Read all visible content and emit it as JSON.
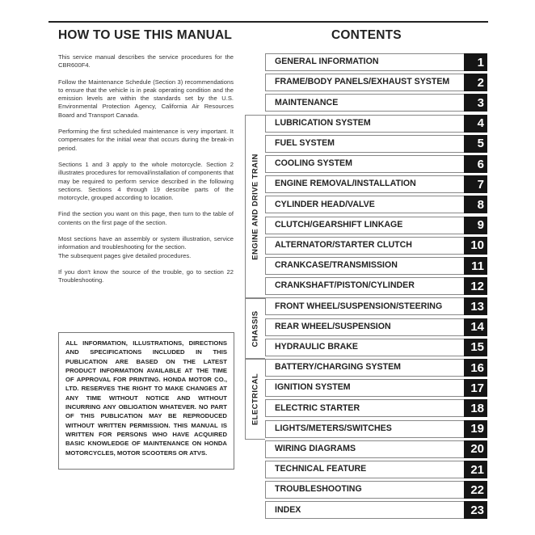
{
  "left": {
    "title": "HOW TO USE THIS MANUAL",
    "paragraphs": [
      "This service manual describes the service procedures for the CBR600F4.",
      "Follow the Maintenance Schedule (Section 3) recommendations to ensure that the vehicle is in peak operating condition and the emission levels are within the standards set by the U.S. Environmental Protection Agency, California Air Resources Board and Transport Canada.",
      "Performing the first scheduled maintenance is very important. It compensates for the initial wear that occurs during the break-in period.",
      "Sections 1 and 3 apply to the whole motorcycle. Section 2 illustrates procedures for removal/installation of components that may be required to perform service described in the following sections. Sections 4 through 19 describe parts of the motorcycle, grouped according to location.",
      "Find the section you want on this page, then turn to the table of contents on the first page of the section.",
      "Most sections have an assembly or system illustration, service information and troubleshooting for the section.",
      "The subsequent pages give detailed procedures.",
      "If you don't know the source of the trouble, go to section 22 Troubleshooting."
    ],
    "disclaimer": "ALL INFORMATION, ILLUSTRATIONS, DIRECTIONS AND SPECIFICATIONS INCLUDED IN THIS PUBLICATION ARE BASED ON THE LATEST PRODUCT INFORMATION AVAILABLE AT THE TIME OF APPROVAL FOR PRINTING. HONDA MOTOR CO., LTD. RESERVES THE RIGHT TO MAKE CHANGES AT ANY TIME WITHOUT NOTICE AND WITHOUT INCURRING ANY OBLIGATION WHATEVER. NO PART OF THIS PUBLICATION MAY BE REPRODUCED WITHOUT WRITTEN PERMISSION. THIS MANUAL IS WRITTEN FOR PERSONS WHO HAVE ACQUIRED BASIC KNOWLEDGE OF MAINTENANCE ON HONDA MOTORCYCLES, MOTOR SCOOTERS OR ATVS."
  },
  "contents": {
    "title": "CONTENTS",
    "groups": [
      "ENGINE AND DRIVE TRAIN",
      "CHASSIS",
      "ELECTRICAL"
    ],
    "items": [
      {
        "label": "GENERAL INFORMATION",
        "num": "1"
      },
      {
        "label": "FRAME/BODY PANELS/EXHAUST SYSTEM",
        "num": "2"
      },
      {
        "label": "MAINTENANCE",
        "num": "3"
      },
      {
        "label": "LUBRICATION SYSTEM",
        "num": "4"
      },
      {
        "label": "FUEL SYSTEM",
        "num": "5"
      },
      {
        "label": "COOLING SYSTEM",
        "num": "6"
      },
      {
        "label": "ENGINE REMOVAL/INSTALLATION",
        "num": "7"
      },
      {
        "label": "CYLINDER HEAD/VALVE",
        "num": "8"
      },
      {
        "label": "CLUTCH/GEARSHIFT LINKAGE",
        "num": "9"
      },
      {
        "label": "ALTERNATOR/STARTER CLUTCH",
        "num": "10"
      },
      {
        "label": "CRANKCASE/TRANSMISSION",
        "num": "11"
      },
      {
        "label": "CRANKSHAFT/PISTON/CYLINDER",
        "num": "12"
      },
      {
        "label": "FRONT WHEEL/SUSPENSION/STEERING",
        "num": "13"
      },
      {
        "label": "REAR WHEEL/SUSPENSION",
        "num": "14"
      },
      {
        "label": "HYDRAULIC BRAKE",
        "num": "15"
      },
      {
        "label": "BATTERY/CHARGING SYSTEM",
        "num": "16"
      },
      {
        "label": "IGNITION SYSTEM",
        "num": "17"
      },
      {
        "label": "ELECTRIC STARTER",
        "num": "18"
      },
      {
        "label": "LIGHTS/METERS/SWITCHES",
        "num": "19"
      },
      {
        "label": "WIRING DIAGRAMS",
        "num": "20"
      },
      {
        "label": "TECHNICAL FEATURE",
        "num": "21"
      },
      {
        "label": "TROUBLESHOOTING",
        "num": "22"
      },
      {
        "label": "INDEX",
        "num": "23"
      }
    ]
  }
}
